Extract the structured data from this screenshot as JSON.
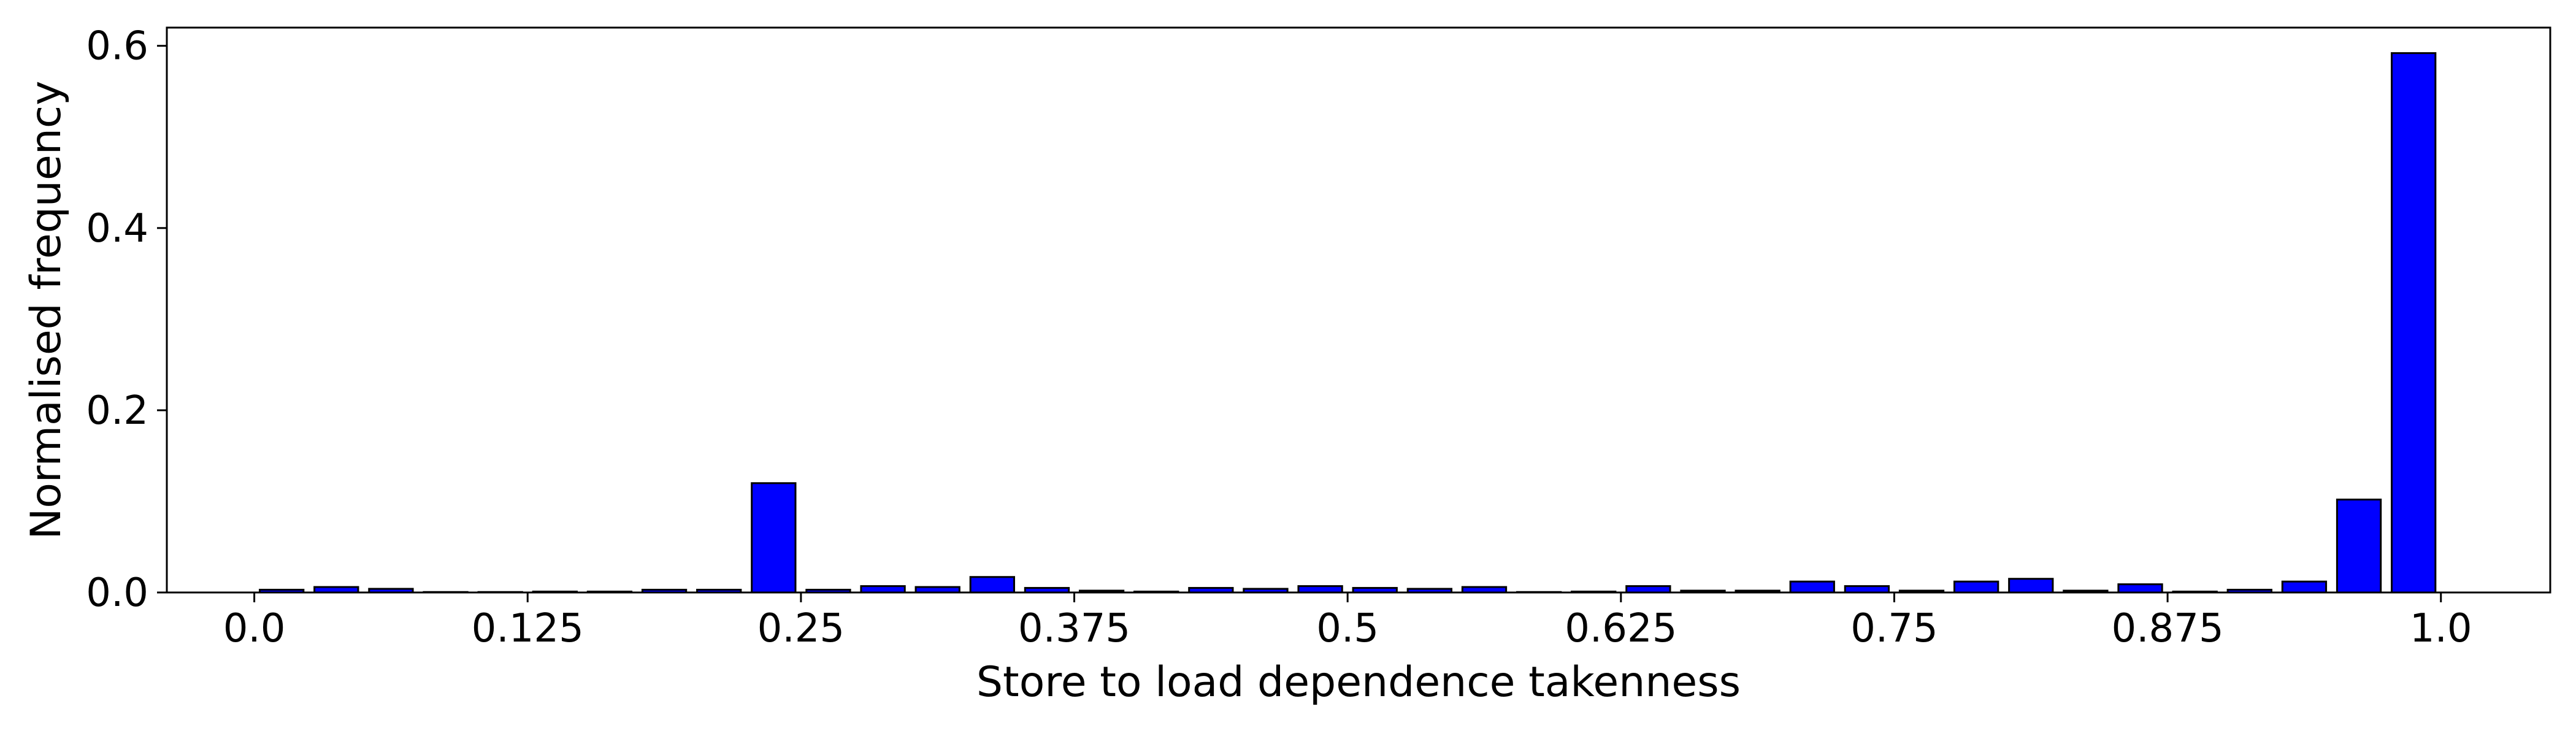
{
  "chart_data": {
    "type": "bar",
    "xlabel": "Store to load dependence takenness",
    "ylabel": "Normalised frequency",
    "xlim": [
      -0.04,
      1.05
    ],
    "ylim": [
      0,
      0.62
    ],
    "grid": false,
    "legend": "none",
    "colors": {
      "bar_fill": "#0000ff",
      "bar_edge": "#000000"
    },
    "bar_width": 0.02,
    "x_ticks": [
      {
        "value": 0.0,
        "label": "0.0"
      },
      {
        "value": 0.125,
        "label": "0.125"
      },
      {
        "value": 0.25,
        "label": "0.25"
      },
      {
        "value": 0.375,
        "label": "0.375"
      },
      {
        "value": 0.5,
        "label": "0.5"
      },
      {
        "value": 0.625,
        "label": "0.625"
      },
      {
        "value": 0.75,
        "label": "0.75"
      },
      {
        "value": 0.875,
        "label": "0.875"
      },
      {
        "value": 1.0,
        "label": "1.0"
      }
    ],
    "y_ticks": [
      {
        "value": 0.0,
        "label": "0.0"
      },
      {
        "value": 0.2,
        "label": "0.2"
      },
      {
        "value": 0.4,
        "label": "0.4"
      },
      {
        "value": 0.6,
        "label": "0.6"
      }
    ],
    "x": [
      0.0125,
      0.0375,
      0.0625,
      0.0875,
      0.1125,
      0.1375,
      0.1625,
      0.1875,
      0.2125,
      0.2375,
      0.2625,
      0.2875,
      0.3125,
      0.3375,
      0.3625,
      0.3875,
      0.4125,
      0.4375,
      0.4625,
      0.4875,
      0.5125,
      0.5375,
      0.5625,
      0.5875,
      0.6125,
      0.6375,
      0.6625,
      0.6875,
      0.7125,
      0.7375,
      0.7625,
      0.7875,
      0.8125,
      0.8375,
      0.8625,
      0.8875,
      0.9125,
      0.9375,
      0.9625,
      0.9875
    ],
    "values": [
      0.003,
      0.006,
      0.004,
      0.0005,
      0.0005,
      0.001,
      0.001,
      0.003,
      0.003,
      0.12,
      0.003,
      0.007,
      0.006,
      0.017,
      0.005,
      0.002,
      0.001,
      0.005,
      0.004,
      0.007,
      0.005,
      0.004,
      0.006,
      0.0005,
      0.001,
      0.007,
      0.002,
      0.002,
      0.012,
      0.007,
      0.002,
      0.012,
      0.015,
      0.002,
      0.009,
      0.001,
      0.003,
      0.012,
      0.102,
      0.592
    ]
  }
}
